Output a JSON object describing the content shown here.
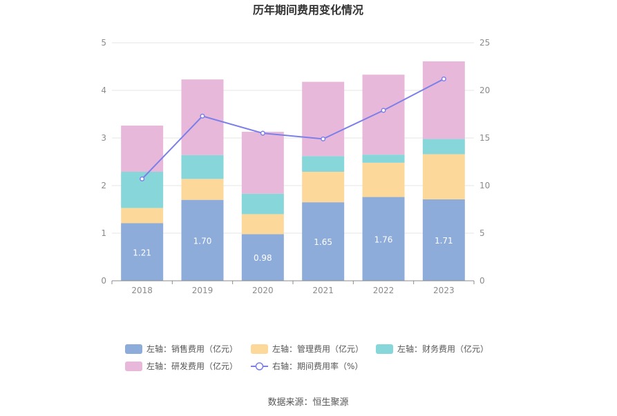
{
  "chart_data": {
    "type": "bar",
    "title": "历年期间费用变化情况",
    "categories": [
      "2018",
      "2019",
      "2020",
      "2021",
      "2022",
      "2023"
    ],
    "left_axis": {
      "ylim": [
        0,
        5
      ],
      "ticks": [
        "0",
        "1",
        "2",
        "3",
        "4",
        "5"
      ]
    },
    "right_axis": {
      "ylim": [
        0,
        25
      ],
      "ticks": [
        "0",
        "5",
        "10",
        "15",
        "20",
        "25"
      ]
    },
    "series": [
      {
        "name": "左轴：销售费用（亿元）",
        "axis": "left",
        "kind": "bar",
        "color": "#8eacd9",
        "values": [
          1.21,
          1.7,
          0.98,
          1.65,
          1.76,
          1.71
        ],
        "labels": [
          "1.21",
          "1.70",
          "0.98",
          "1.65",
          "1.76",
          "1.71"
        ]
      },
      {
        "name": "左轴：管理费用（亿元）",
        "axis": "left",
        "kind": "bar",
        "color": "#fdd89b",
        "values": [
          0.32,
          0.44,
          0.42,
          0.64,
          0.72,
          0.95
        ]
      },
      {
        "name": "左轴：财务费用（亿元）",
        "axis": "left",
        "kind": "bar",
        "color": "#86d6da",
        "values": [
          0.76,
          0.5,
          0.43,
          0.33,
          0.17,
          0.32
        ]
      },
      {
        "name": "左轴：研发费用（亿元）",
        "axis": "left",
        "kind": "bar",
        "color": "#e8b8da",
        "values": [
          0.97,
          1.59,
          1.3,
          1.56,
          1.68,
          1.63
        ]
      },
      {
        "name": "右轴：期间费用率（%）",
        "axis": "right",
        "kind": "line",
        "color": "#7b7fe8",
        "values": [
          10.7,
          17.3,
          15.5,
          14.9,
          17.9,
          21.2
        ]
      }
    ],
    "legend_position": "bottom",
    "grid": true
  },
  "source": "数据来源：恒生聚源"
}
